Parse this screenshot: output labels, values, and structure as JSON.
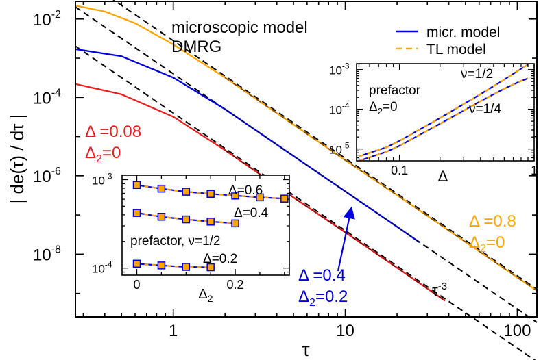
{
  "chart_data": [
    {
      "id": "main",
      "type": "line",
      "xscale": "log",
      "yscale": "log",
      "xlim": [
        0.27,
        130
      ],
      "ylim_exp": [
        -9.6,
        -1.55
      ],
      "xlabel": "τ",
      "ylabel": "| de(τ) / dτ |",
      "x_ticks": [
        {
          "value": 1,
          "label": "1"
        },
        {
          "value": 10,
          "label": "10"
        },
        {
          "value": 100,
          "label": "100"
        }
      ],
      "y_ticks": [
        {
          "exp": -2,
          "label": "10",
          "sup": "-2"
        },
        {
          "exp": -4,
          "label": "10",
          "sup": "-4"
        },
        {
          "exp": -6,
          "label": "10",
          "sup": "-6"
        },
        {
          "exp": -8,
          "label": "10",
          "sup": "-8"
        }
      ],
      "header_text": [
        "microscopic model",
        "DMRG"
      ],
      "legend": {
        "placement": "top-right",
        "entries": [
          {
            "label": "micr. model",
            "color": "#0000dd",
            "style": "solid"
          },
          {
            "label": "TL model",
            "color": "#ffa500",
            "style": "dashed"
          }
        ]
      },
      "series": [
        {
          "name": "Δ=0.8, Δ2=0",
          "label": {
            "delta": "Δ =0.8",
            "delta2": "=0"
          },
          "color": "#ffa500",
          "x": [
            0.27,
            0.4,
            0.6,
            1.0,
            2,
            5,
            10,
            20,
            50,
            100,
            130
          ],
          "y": [
            0.022,
            0.0155,
            0.0078,
            0.00224,
            0.00032,
            2.03e-05,
            2.5e-06,
            3.2e-07,
            2.05e-08,
            2.56e-09,
            1.17e-09
          ]
        },
        {
          "name": "Δ=0.4, Δ2=0.2",
          "label": {
            "delta": "Δ =0.4",
            "delta2": "=0.2"
          },
          "color": "#0000dd",
          "x": [
            0.27,
            0.5,
            1.0,
            2,
            5,
            10,
            20,
            27
          ],
          "y": [
            0.0017,
            0.00112,
            0.00032,
            5e-05,
            3.2e-06,
            4e-07,
            5e-08,
            2e-08
          ]
        },
        {
          "name": "Δ=0.08, Δ2=0",
          "label": {
            "delta": "Δ =0.08",
            "delta2": "=0"
          },
          "color": "#ee1c1c",
          "x": [
            0.27,
            0.5,
            1.0,
            2,
            5,
            10,
            20,
            38
          ],
          "y": [
            0.00022,
            0.00012,
            3.2e-05,
            4.5e-06,
            2.8e-07,
            3.6e-08,
            4.5e-09,
            6.5e-10
          ]
        }
      ],
      "reference_lines": [
        {
          "label": "τ-3",
          "exponent": -3,
          "color": "#000000",
          "style": "dashed",
          "anchor": {
            "x": 1,
            "y": 0.0028
          }
        },
        {
          "label": "",
          "exponent": -3,
          "color": "#000000",
          "style": "dashed",
          "anchor": {
            "x": 1,
            "y": 0.0004
          }
        },
        {
          "label": "",
          "exponent": -3,
          "color": "#000000",
          "style": "dashed",
          "anchor": {
            "x": 1,
            "y": 4e-05
          }
        }
      ],
      "annotations": [
        {
          "text": "arrow pointing to the Δ=0.4 curve",
          "from": {
            "x": 10,
            "y": 3e-08
          },
          "to": {
            "x": 11,
            "y": 4e-07
          }
        }
      ]
    },
    {
      "id": "inset_prefactor_delta",
      "type": "line",
      "xscale": "log",
      "yscale": "log",
      "xlim": [
        0.048,
        1.0
      ],
      "ylim_exp": [
        -5.3,
        -2.85
      ],
      "xlabel": "Δ",
      "x_ticks": [
        {
          "value": 0.1,
          "label": "0.1"
        },
        {
          "value": 1,
          "label": "1"
        }
      ],
      "y_ticks": [
        {
          "exp": -3,
          "label": "10",
          "sup": "-3"
        },
        {
          "exp": -4,
          "label": "10",
          "sup": "-4"
        },
        {
          "exp": -5,
          "label": "10",
          "sup": "-5"
        }
      ],
      "text": [
        "prefactor",
        "Δ2=0"
      ],
      "series": [
        {
          "name": "ν=1/2",
          "label": "ν=1/2",
          "x": [
            0.05,
            0.08,
            0.1,
            0.2,
            0.4,
            0.6,
            0.8,
            0.9
          ],
          "y": [
            6.5e-06,
            1.1e-05,
            1.6e-05,
            6e-05,
            0.00024,
            0.00056,
            0.00105,
            0.00135
          ]
        },
        {
          "name": "ν=1/4",
          "label": "ν=1/4",
          "x": [
            0.05,
            0.08,
            0.1,
            0.2,
            0.4,
            0.6,
            0.8,
            0.9
          ],
          "y": [
            5e-06,
            8.5e-06,
            1.2e-05,
            4.3e-05,
            0.00016,
            0.00033,
            0.00052,
            0.0006
          ]
        }
      ],
      "line_colors": {
        "micr": "#0000dd",
        "tl": "#ffa500"
      }
    },
    {
      "id": "inset_prefactor_delta2",
      "type": "line",
      "xscale": "linear",
      "yscale": "log",
      "xlim": [
        -0.03,
        0.31
      ],
      "ylim_exp": [
        -4.08,
        -2.95
      ],
      "xlabel": "Δ2",
      "x_ticks": [
        {
          "value": 0,
          "label": "0"
        },
        {
          "value": 0.2,
          "label": "0.2"
        }
      ],
      "y_ticks": [
        {
          "exp": -3,
          "label": "10",
          "sup": "-3"
        },
        {
          "exp": -4,
          "label": "10",
          "sup": "-4"
        }
      ],
      "text": "prefactor, ν=1/2",
      "series": [
        {
          "name": "Δ=0.6",
          "label": "Δ=0.6",
          "x": [
            0,
            0.05,
            0.1,
            0.15,
            0.2,
            0.25,
            0.3
          ],
          "y": [
            0.00087,
            0.00079,
            0.00073,
            0.00069,
            0.00066,
            0.00063,
            0.00061
          ]
        },
        {
          "name": "Δ=0.4",
          "label": "Δ=0.4",
          "x": [
            0,
            0.05,
            0.1,
            0.15,
            0.2
          ],
          "y": [
            0.00042,
            0.00038,
            0.000355,
            0.000335,
            0.00032
          ]
        },
        {
          "name": "Δ=0.2",
          "label": "Δ=0.2",
          "x": [
            0,
            0.05,
            0.1,
            0.15
          ],
          "y": [
            0.000112,
            0.000107,
            0.000103,
            0.000102
          ]
        }
      ],
      "line_colors": {
        "micr": "#0000dd",
        "tl": "#ffa500"
      }
    }
  ]
}
